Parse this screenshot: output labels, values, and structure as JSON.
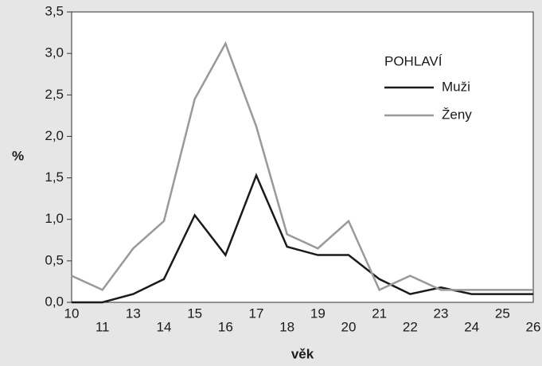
{
  "chart_data": {
    "type": "line",
    "categories": [
      "10",
      "11",
      "13",
      "14",
      "15",
      "16",
      "17",
      "18",
      "19",
      "20",
      "21",
      "22",
      "23",
      "24",
      "25",
      "26"
    ],
    "series": [
      {
        "name": "Muži",
        "color": "#1a1a1a",
        "values": [
          0,
          0,
          0.1,
          0.28,
          1.05,
          0.57,
          1.53,
          0.67,
          0.57,
          0.57,
          0.28,
          0.1,
          0.18,
          0.1,
          0.1,
          0.1
        ]
      },
      {
        "name": "Ženy",
        "color": "#999999",
        "values": [
          0.32,
          0.15,
          0.65,
          0.98,
          2.45,
          3.12,
          2.12,
          0.82,
          0.65,
          0.98,
          0.15,
          0.32,
          0.15,
          0.15,
          0.15,
          0.15
        ]
      }
    ],
    "legend_title": "POHLAVÍ",
    "xlabel": "věk",
    "ylabel": "%",
    "ylim": [
      0,
      3.5
    ],
    "yticks": [
      {
        "value": 0,
        "label": "0,0"
      },
      {
        "value": 0.5,
        "label": "0,5"
      },
      {
        "value": 1,
        "label": "1,0"
      },
      {
        "value": 1.5,
        "label": "1,5"
      },
      {
        "value": 2,
        "label": "2,0"
      },
      {
        "value": 2.5,
        "label": "2,5"
      },
      {
        "value": 3,
        "label": "3,0"
      },
      {
        "value": 3.5,
        "label": "3,5"
      }
    ],
    "legend": "upper right"
  }
}
